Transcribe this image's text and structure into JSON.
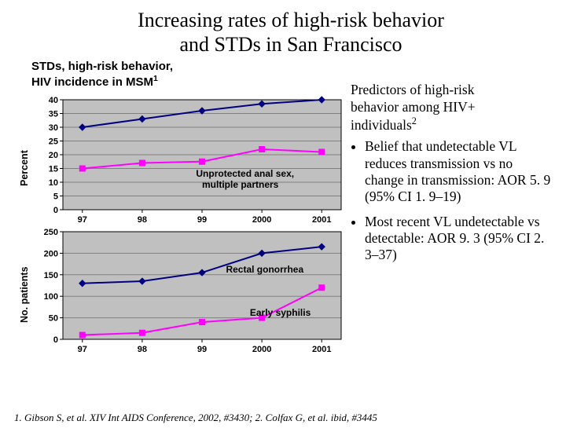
{
  "title_lines": [
    "Increasing rates of high-risk behavior",
    "and STDs in San Francisco"
  ],
  "subtitle1_lines": [
    "STDs, high-risk behavior,",
    "HIV incidence in MSM"
  ],
  "subtitle1_sup": "1",
  "right_title_lines": [
    "Predictors of high-risk",
    "behavior among HIV+",
    "individuals"
  ],
  "right_title_sup": "2",
  "bullets": [
    "Belief that undetectable VL reduces transmission vs no change in transmission: AOR 5. 9 (95% CI 1. 9–19)",
    "Most recent VL undetectable vs detectable: AOR 9. 3 (95% CI 2. 3–37)"
  ],
  "footnote": "1. Gibson S, et al. XIV Int AIDS Conference, 2002, #3430; 2. Colfax G, et al. ibid, #3445",
  "chart1": {
    "type": "line",
    "ylabel": "Percent",
    "x_labels": [
      "97",
      "98",
      "99",
      "2000",
      "2001"
    ],
    "ylim": [
      0,
      40
    ],
    "ytick_step": 5,
    "plot_bg": "#c0c0c0",
    "grid_color": "#808080",
    "axis_color": "#000000",
    "series": [
      {
        "name": "Unprotected anal sex",
        "color": "#000080",
        "marker": "diamond",
        "values": [
          30,
          33,
          36,
          38.5,
          40
        ]
      },
      {
        "name": "Unprotected anal sex, multiple partners",
        "color": "#ff00ff",
        "marker": "square",
        "values": [
          15,
          17,
          17.5,
          22,
          21
        ]
      }
    ],
    "annot": [
      {
        "text": "Unprotected anal sex",
        "xi": 2.0,
        "y": 43.5
      },
      {
        "text": "Unprotected anal sex,",
        "xi": 1.9,
        "y": 12
      },
      {
        "text": "multiple partners",
        "xi": 2.0,
        "y": 8
      }
    ]
  },
  "chart2": {
    "type": "line",
    "ylabel": "No. patients",
    "x_labels": [
      "97",
      "98",
      "99",
      "2000",
      "2001"
    ],
    "ylim": [
      0,
      250
    ],
    "ytick_step": 50,
    "plot_bg": "#c0c0c0",
    "grid_color": "#808080",
    "axis_color": "#000000",
    "series": [
      {
        "name": "Rectal gonorrhea",
        "color": "#000080",
        "marker": "diamond",
        "values": [
          130,
          135,
          155,
          200,
          215
        ]
      },
      {
        "name": "Early syphilis",
        "color": "#ff00ff",
        "marker": "square",
        "values": [
          10,
          15,
          40,
          50,
          120
        ]
      }
    ],
    "annot": [
      {
        "text": "Rectal gonorrhea",
        "xi": 2.4,
        "y": 155
      },
      {
        "text": "Early syphilis",
        "xi": 2.8,
        "y": 55
      }
    ]
  }
}
